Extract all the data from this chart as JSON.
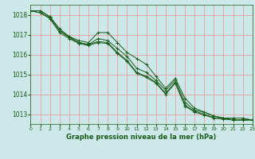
{
  "title": "Graphe pression niveau de la mer (hPa)",
  "bg_color": "#cce8e8",
  "grid_color_h": "#e8a0a0",
  "grid_color_v": "#e8a0a0",
  "line_color": "#1a5c1a",
  "xlim": [
    0,
    23
  ],
  "ylim": [
    1012.5,
    1018.5
  ],
  "yticks": [
    1013,
    1014,
    1015,
    1016,
    1017,
    1018
  ],
  "xticks": [
    0,
    1,
    2,
    3,
    4,
    5,
    6,
    7,
    8,
    9,
    10,
    11,
    12,
    13,
    14,
    15,
    16,
    17,
    18,
    19,
    20,
    21,
    22,
    23
  ],
  "xlabel_fontsize": 6.0,
  "series": [
    [
      1018.2,
      1018.2,
      1017.9,
      1017.3,
      1016.9,
      1016.7,
      1016.6,
      1017.1,
      1017.1,
      1016.6,
      1016.1,
      1015.8,
      1015.5,
      1014.9,
      1014.3,
      1014.8,
      1013.8,
      1013.3,
      1013.1,
      1012.9,
      1012.8,
      1012.8,
      1012.8,
      1012.7
    ],
    [
      1018.2,
      1018.2,
      1017.9,
      1017.2,
      1016.9,
      1016.6,
      1016.5,
      1016.8,
      1016.7,
      1016.3,
      1015.9,
      1015.3,
      1015.1,
      1014.7,
      1014.2,
      1014.7,
      1013.6,
      1013.2,
      1013.1,
      1012.9,
      1012.8,
      1012.7,
      1012.7,
      1012.7
    ],
    [
      1018.2,
      1018.1,
      1017.8,
      1017.1,
      1016.8,
      1016.55,
      1016.45,
      1016.6,
      1016.55,
      1016.05,
      1015.65,
      1015.05,
      1014.85,
      1014.55,
      1014.0,
      1014.55,
      1013.4,
      1013.1,
      1012.95,
      1012.8,
      1012.75,
      1012.7,
      1012.7,
      1012.7
    ],
    [
      1018.2,
      1018.1,
      1017.85,
      1017.2,
      1016.85,
      1016.6,
      1016.5,
      1016.65,
      1016.6,
      1016.1,
      1015.7,
      1015.1,
      1014.9,
      1014.6,
      1014.05,
      1014.6,
      1013.45,
      1013.15,
      1013.0,
      1012.82,
      1012.77,
      1012.72,
      1012.72,
      1012.72
    ]
  ]
}
